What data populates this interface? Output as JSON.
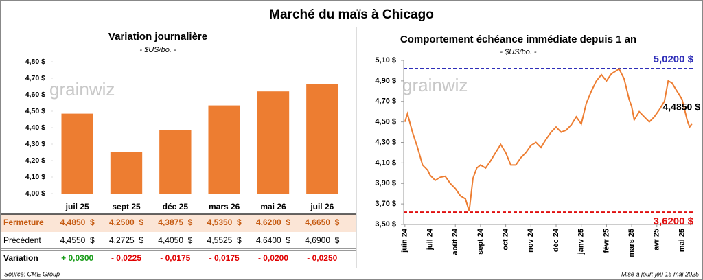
{
  "title": "Marché du maïs à Chicago",
  "watermark": "grainwiz",
  "source": "Source: CME Group",
  "updated": "Mise à jour: jeu 15 mai 2025",
  "chart_data": [
    {
      "type": "bar",
      "title": "Variation journalière",
      "subtitle": "- $US/bo. -",
      "categories": [
        "juil 25",
        "sept 25",
        "déc 25",
        "mars 26",
        "mai 26",
        "juil 26"
      ],
      "values": [
        4.485,
        4.25,
        4.3875,
        4.535,
        4.62,
        4.665
      ],
      "color": "#ed7d31",
      "ylim": [
        4.0,
        4.8
      ],
      "yticks": [
        {
          "value": 4.0,
          "label": "4,00 $"
        },
        {
          "value": 4.1,
          "label": "4,10 $"
        },
        {
          "value": 4.2,
          "label": "4,20 $"
        },
        {
          "value": 4.3,
          "label": "4,30 $"
        },
        {
          "value": 4.4,
          "label": "4,40 $"
        },
        {
          "value": 4.5,
          "label": "4,50 $"
        },
        {
          "value": 4.6,
          "label": "4,60 $"
        },
        {
          "value": 4.7,
          "label": "4,70 $"
        },
        {
          "value": 4.8,
          "label": "4,80 $"
        }
      ]
    },
    {
      "type": "line",
      "title": "Comportement échéance immédiate depuis 1 an",
      "subtitle": "- $US/bo. -",
      "color": "#ed7d31",
      "x": [
        0,
        0.1,
        0.3,
        0.5,
        0.7,
        0.9,
        1.0,
        1.2,
        1.4,
        1.6,
        1.8,
        2.0,
        2.2,
        2.4,
        2.55,
        2.7,
        2.85,
        3.0,
        3.2,
        3.4,
        3.6,
        3.8,
        4.0,
        4.2,
        4.4,
        4.6,
        4.8,
        5.0,
        5.2,
        5.4,
        5.6,
        5.8,
        6.0,
        6.2,
        6.4,
        6.6,
        6.8,
        7.0,
        7.2,
        7.4,
        7.6,
        7.8,
        8.0,
        8.2,
        8.4,
        8.5,
        8.7,
        8.9,
        9.0,
        9.1,
        9.3,
        9.5,
        9.7,
        9.9,
        10.1,
        10.3,
        10.45,
        10.6,
        10.8,
        11.0,
        11.1,
        11.2,
        11.3,
        11.4
      ],
      "values": [
        4.5,
        4.58,
        4.4,
        4.25,
        4.08,
        4.03,
        3.98,
        3.93,
        3.96,
        3.97,
        3.9,
        3.85,
        3.78,
        3.75,
        3.63,
        3.95,
        4.05,
        4.08,
        4.05,
        4.12,
        4.2,
        4.28,
        4.2,
        4.08,
        4.08,
        4.15,
        4.2,
        4.27,
        4.3,
        4.25,
        4.33,
        4.4,
        4.45,
        4.4,
        4.42,
        4.47,
        4.55,
        4.48,
        4.68,
        4.8,
        4.9,
        4.96,
        4.9,
        4.97,
        5.0,
        5.02,
        4.92,
        4.72,
        4.65,
        4.52,
        4.6,
        4.55,
        4.5,
        4.55,
        4.62,
        4.7,
        4.9,
        4.88,
        4.8,
        4.72,
        4.62,
        4.52,
        4.45,
        4.485
      ],
      "xlim": [
        -0.05,
        11.45
      ],
      "xticks": [
        {
          "value": 0,
          "label": "juin 24"
        },
        {
          "value": 1,
          "label": "juil 24"
        },
        {
          "value": 2,
          "label": "août 24"
        },
        {
          "value": 3,
          "label": "sept 24"
        },
        {
          "value": 4,
          "label": "oct 24"
        },
        {
          "value": 5,
          "label": "nov 24"
        },
        {
          "value": 6,
          "label": "déc 24"
        },
        {
          "value": 7,
          "label": "janv 25"
        },
        {
          "value": 8,
          "label": "févr 25"
        },
        {
          "value": 9,
          "label": "mars 25"
        },
        {
          "value": 10,
          "label": "avr 25"
        },
        {
          "value": 11,
          "label": "mai 25"
        }
      ],
      "ylim": [
        3.5,
        5.1
      ],
      "yticks": [
        {
          "value": 3.5,
          "label": "3,50 $"
        },
        {
          "value": 3.7,
          "label": "3,70 $"
        },
        {
          "value": 3.9,
          "label": "3,90 $"
        },
        {
          "value": 4.1,
          "label": "4,10 $"
        },
        {
          "value": 4.3,
          "label": "4,30 $"
        },
        {
          "value": 4.5,
          "label": "4,50 $"
        },
        {
          "value": 4.7,
          "label": "4,70 $"
        },
        {
          "value": 4.9,
          "label": "4,90 $"
        },
        {
          "value": 5.1,
          "label": "5,10 $"
        }
      ],
      "reference_lines": [
        {
          "value": 5.02,
          "label": "5,0200 $",
          "color": "#2e2eb8"
        },
        {
          "value": 3.62,
          "label": "3,6200 $",
          "color": "#e01010"
        }
      ],
      "last_label": {
        "value": 4.485,
        "label": "4,4850 $"
      }
    }
  ],
  "table": {
    "rows": [
      {
        "label": "Fermeture",
        "cells": [
          "4,4850  $",
          "4,2500  $",
          "4,3875  $",
          "4,5350  $",
          "4,6200  $",
          "4,6650  $"
        ],
        "color": "#c55a11",
        "background": "#fbe5d6"
      },
      {
        "label": "Précédent",
        "cells": [
          "4,4550  $",
          "4,2725  $",
          "4,4050  $",
          "4,5525  $",
          "4,6400  $",
          "4,6900  $"
        ],
        "color": "#000000"
      },
      {
        "label": "Variation",
        "cells": [
          "+ 0,0300",
          "- 0,0225",
          "- 0,0175",
          "- 0,0175",
          "- 0,0200",
          "- 0,0250"
        ],
        "cell_colors": [
          "#1a9c1a",
          "#e00000",
          "#e00000",
          "#e00000",
          "#e00000",
          "#e00000"
        ],
        "color": "#000000"
      }
    ]
  }
}
